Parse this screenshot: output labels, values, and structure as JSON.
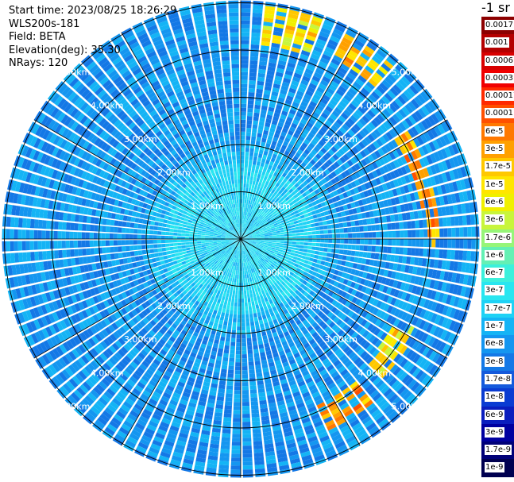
{
  "info": {
    "start_time": "Start time: 2023/08/25 18:26:29",
    "instrument": "WLS200s-181",
    "field": "Field: BETA",
    "elevation": "Elevation(deg): 35.30",
    "nrays": "NRays: 120"
  },
  "colorbar": {
    "unit": "-1 sr",
    "labels": [
      "0.0017",
      "0.001",
      "0.0006",
      "0.0003",
      "0.00017",
      "0.0001",
      "6e-5",
      "3e-5",
      "1.7e-5",
      "1e-5",
      "6e-6",
      "3e-6",
      "1.7e-6",
      "1e-6",
      "6e-7",
      "3e-7",
      "1.7e-7",
      "1e-7",
      "6e-8",
      "3e-8",
      "1.7e-8",
      "1e-8",
      "6e-9",
      "3e-9",
      "1.7e-9",
      "1e-9"
    ],
    "colors": [
      "#8c0000",
      "#b40000",
      "#d80000",
      "#f00000",
      "#ff2a00",
      "#ff5000",
      "#ff7800",
      "#ffa000",
      "#ffc800",
      "#ffe600",
      "#f0f000",
      "#c8f53c",
      "#96f578",
      "#64f0b4",
      "#3cf0dc",
      "#28e6f0",
      "#1ed2f5",
      "#14b4f5",
      "#1496f0",
      "#1478e6",
      "#145adc",
      "#0a3cd2",
      "#0a1ebe",
      "#0000a0",
      "#000078",
      "#000050"
    ]
  },
  "chart_data": {
    "type": "heatmap",
    "projection": "polar (PPI scan)",
    "field": "BETA",
    "nrays": 120,
    "elevation_deg": 35.3,
    "range_rings_km": [
      1,
      2,
      3,
      4,
      5
    ],
    "range_labels": [
      "1.00km",
      "2.00km",
      "3.00km",
      "4.00km",
      "5.00km"
    ],
    "max_range_km": 5.05,
    "color_scale": "log",
    "background_range": [
      "3e-8",
      "1e-7"
    ],
    "near_range_level": "1.7e-7",
    "high_backscatter_regions": [
      {
        "azimuth_deg": [
          5,
          22
        ],
        "range_km": [
          4.15,
          4.95
        ],
        "beta": "1e-5"
      },
      {
        "azimuth_deg": [
          28,
          42
        ],
        "range_km": [
          4.3,
          4.9
        ],
        "beta": "1.7e-5"
      },
      {
        "azimuth_deg": [
          58,
          92
        ],
        "range_km": [
          3.85,
          4.2
        ],
        "beta": "3e-5"
      },
      {
        "azimuth_deg": [
          118,
          135
        ],
        "range_km": [
          3.7,
          4.25
        ],
        "beta": "1e-5"
      },
      {
        "azimuth_deg": [
          140,
          155
        ],
        "range_km": [
          3.9,
          4.5
        ],
        "beta": "3e-5"
      }
    ]
  }
}
